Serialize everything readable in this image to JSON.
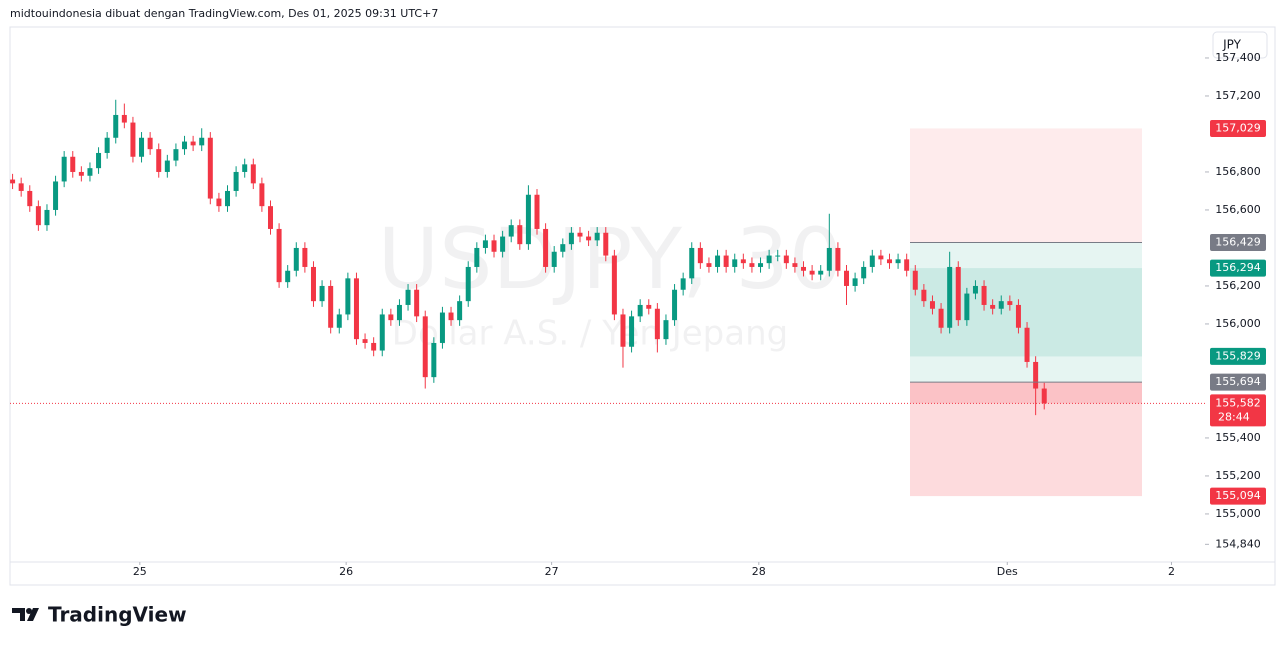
{
  "chart_data": {
    "type": "candlestick",
    "title": "midtouindonesia dibuat dengan TradingView.com, Des 01, 2025 09:31 UTC+7",
    "symbol": "USDJPY, 30",
    "subtitle": "Dollar A.S. / Yen Jepang",
    "currency": "JPY",
    "brand": "TradingView",
    "up_color": "#089981",
    "down_color": "#f23645",
    "ylim": [
      154.747,
      157.563
    ],
    "yticks": [
      {
        "value": 157.4,
        "label": "157,400"
      },
      {
        "value": 157.2,
        "label": "157,200"
      },
      {
        "value": 156.8,
        "label": "156,800"
      },
      {
        "value": 156.6,
        "label": "156,600"
      },
      {
        "value": 156.2,
        "label": "156,200"
      },
      {
        "value": 156.0,
        "label": "156,000"
      },
      {
        "value": 155.4,
        "label": "155,400"
      },
      {
        "value": 155.2,
        "label": "155,200"
      },
      {
        "value": 155.0,
        "label": "155,000"
      },
      {
        "value": 154.84,
        "label": "154,840"
      }
    ],
    "xlim": [
      -0.3,
      138.7
    ],
    "xticks": [
      {
        "value": 14.8,
        "label": "25"
      },
      {
        "value": 38.8,
        "label": "26"
      },
      {
        "value": 62.7,
        "label": "27"
      },
      {
        "value": 86.8,
        "label": "28"
      },
      {
        "value": 115.7,
        "label": "Des"
      },
      {
        "value": 134.8,
        "label": "2"
      }
    ],
    "open": [
      156.76,
      156.74,
      156.7,
      156.62,
      156.52,
      156.6,
      156.75,
      156.88,
      156.8,
      156.78,
      156.82,
      156.9,
      156.98,
      157.1,
      157.06,
      156.88,
      156.98,
      156.92,
      156.8,
      156.86,
      156.92,
      156.96,
      156.94,
      156.98,
      156.66,
      156.62,
      156.7,
      156.8,
      156.84,
      156.74,
      156.62,
      156.5,
      156.22,
      156.28,
      156.4,
      156.3,
      156.12,
      156.2,
      155.98,
      156.05,
      156.24,
      155.92,
      155.9,
      155.86,
      156.05,
      156.02,
      156.1,
      156.18,
      156.04,
      155.72,
      155.9,
      156.06,
      156.02,
      156.12,
      156.3,
      156.4,
      156.44,
      156.38,
      156.46,
      156.52,
      156.42,
      156.68,
      156.5,
      156.3,
      156.38,
      156.42,
      156.48,
      156.46,
      156.44,
      156.48,
      156.36,
      156.05,
      155.88,
      156.04,
      156.1,
      156.08,
      155.92,
      156.02,
      156.18,
      156.24,
      156.4,
      156.32,
      156.3,
      156.36,
      156.3,
      156.34,
      156.32,
      156.3,
      156.32,
      156.36,
      156.36,
      156.32,
      156.3,
      156.28,
      156.26,
      156.28,
      156.4,
      156.28,
      156.2,
      156.24,
      156.3,
      156.36,
      156.34,
      156.32,
      156.34,
      156.28,
      156.18,
      156.12,
      156.08,
      155.98,
      156.3,
      156.02,
      156.16,
      156.2,
      156.1,
      156.08,
      156.12,
      156.1,
      155.98,
      155.8,
      155.66
    ],
    "high": [
      156.79,
      156.77,
      156.73,
      156.65,
      156.63,
      156.78,
      156.91,
      156.91,
      156.83,
      156.85,
      156.93,
      157.01,
      157.18,
      157.16,
      157.09,
      157.01,
      157.01,
      156.95,
      156.89,
      156.95,
      156.99,
      156.99,
      157.03,
      157.01,
      156.69,
      156.73,
      156.83,
      156.87,
      156.87,
      156.77,
      156.65,
      156.53,
      156.31,
      156.43,
      156.43,
      156.33,
      156.23,
      156.23,
      156.08,
      156.27,
      156.27,
      155.95,
      155.93,
      156.08,
      156.08,
      156.13,
      156.21,
      156.21,
      156.07,
      155.93,
      156.09,
      156.09,
      156.15,
      156.33,
      156.43,
      156.47,
      156.47,
      156.49,
      156.55,
      156.55,
      156.73,
      156.71,
      156.53,
      156.41,
      156.45,
      156.51,
      156.51,
      156.49,
      156.51,
      156.51,
      156.39,
      156.08,
      156.07,
      156.13,
      156.13,
      156.11,
      156.05,
      156.21,
      156.27,
      156.43,
      156.43,
      156.35,
      156.39,
      156.39,
      156.37,
      156.37,
      156.35,
      156.35,
      156.39,
      156.39,
      156.39,
      156.35,
      156.33,
      156.31,
      156.31,
      156.58,
      156.43,
      156.31,
      156.27,
      156.33,
      156.39,
      156.39,
      156.37,
      156.37,
      156.37,
      156.31,
      156.21,
      156.15,
      156.11,
      156.38,
      156.33,
      156.19,
      156.23,
      156.23,
      156.13,
      156.15,
      156.15,
      156.13,
      156.01,
      155.83,
      155.69
    ],
    "low": [
      156.71,
      156.67,
      156.59,
      156.49,
      156.49,
      156.57,
      156.72,
      156.77,
      156.75,
      156.75,
      156.79,
      156.87,
      156.95,
      157.03,
      156.85,
      156.85,
      156.89,
      156.77,
      156.77,
      156.83,
      156.89,
      156.91,
      156.91,
      156.63,
      156.59,
      156.59,
      156.67,
      156.77,
      156.71,
      156.59,
      156.47,
      156.19,
      156.19,
      156.25,
      156.27,
      156.09,
      156.09,
      155.95,
      155.95,
      156.02,
      155.89,
      155.87,
      155.83,
      155.83,
      155.99,
      155.99,
      156.07,
      156.01,
      155.66,
      155.69,
      155.87,
      155.99,
      155.99,
      156.09,
      156.27,
      156.37,
      156.35,
      156.35,
      156.43,
      156.39,
      156.39,
      156.47,
      156.27,
      156.27,
      156.35,
      156.39,
      156.43,
      156.41,
      156.41,
      156.33,
      156.02,
      155.77,
      155.85,
      156.01,
      156.05,
      155.85,
      155.89,
      155.99,
      156.15,
      156.21,
      156.29,
      156.27,
      156.27,
      156.27,
      156.27,
      156.29,
      156.27,
      156.27,
      156.29,
      156.33,
      156.29,
      156.27,
      156.25,
      156.23,
      156.23,
      156.25,
      156.25,
      156.1,
      156.17,
      156.21,
      156.27,
      156.31,
      156.29,
      156.29,
      156.25,
      156.15,
      156.09,
      156.05,
      155.95,
      155.95,
      155.99,
      155.99,
      156.13,
      156.07,
      156.05,
      156.05,
      156.07,
      155.95,
      155.77,
      155.52,
      155.55
    ],
    "close": [
      156.74,
      156.7,
      156.62,
      156.52,
      156.6,
      156.75,
      156.88,
      156.8,
      156.78,
      156.82,
      156.9,
      156.98,
      157.1,
      157.06,
      156.88,
      156.98,
      156.92,
      156.8,
      156.86,
      156.92,
      156.96,
      156.94,
      156.98,
      156.66,
      156.62,
      156.7,
      156.8,
      156.84,
      156.74,
      156.62,
      156.5,
      156.22,
      156.28,
      156.4,
      156.3,
      156.12,
      156.2,
      155.98,
      156.05,
      156.24,
      155.92,
      155.9,
      155.86,
      156.05,
      156.02,
      156.1,
      156.18,
      156.04,
      155.72,
      155.9,
      156.06,
      156.02,
      156.12,
      156.3,
      156.4,
      156.44,
      156.38,
      156.46,
      156.52,
      156.42,
      156.68,
      156.5,
      156.3,
      156.38,
      156.42,
      156.48,
      156.46,
      156.44,
      156.48,
      156.36,
      156.05,
      155.88,
      156.04,
      156.1,
      156.08,
      155.92,
      156.02,
      156.18,
      156.24,
      156.4,
      156.32,
      156.3,
      156.36,
      156.3,
      156.34,
      156.32,
      156.3,
      156.32,
      156.36,
      156.36,
      156.32,
      156.3,
      156.28,
      156.26,
      156.28,
      156.4,
      156.28,
      156.2,
      156.24,
      156.3,
      156.36,
      156.34,
      156.32,
      156.34,
      156.28,
      156.18,
      156.12,
      156.08,
      155.98,
      156.3,
      156.02,
      156.16,
      156.2,
      156.1,
      156.08,
      156.12,
      156.1,
      155.98,
      155.8,
      155.66,
      155.582
    ],
    "zones": [
      {
        "top": 157.029,
        "bottom": 156.429,
        "color": "rgba(242,54,69,0.10)"
      },
      {
        "top": 156.429,
        "bottom": 155.694,
        "color": "rgba(8,153,129,0.10)"
      },
      {
        "top": 156.294,
        "bottom": 155.829,
        "color": "rgba(8,153,129,0.12)"
      },
      {
        "top": 155.694,
        "bottom": 155.094,
        "color": "rgba(242,54,69,0.18)"
      },
      {
        "top": 155.694,
        "bottom": 155.582,
        "color": "rgba(242,54,69,0.15)"
      }
    ],
    "price_labels": [
      {
        "value": 157.029,
        "label": "157,029",
        "color": "#f23645"
      },
      {
        "value": 156.429,
        "label": "156,429",
        "color": "#787b86"
      },
      {
        "value": 156.294,
        "label": "156,294",
        "color": "#089981"
      },
      {
        "value": 155.829,
        "label": "155,829",
        "color": "#089981"
      },
      {
        "value": 155.694,
        "label": "155,694",
        "color": "#787b86"
      },
      {
        "value": 155.582,
        "label": "155,582",
        "color": "#f23645",
        "countdown": "28:44"
      },
      {
        "value": 155.094,
        "label": "155,094",
        "color": "#f23645"
      }
    ]
  }
}
